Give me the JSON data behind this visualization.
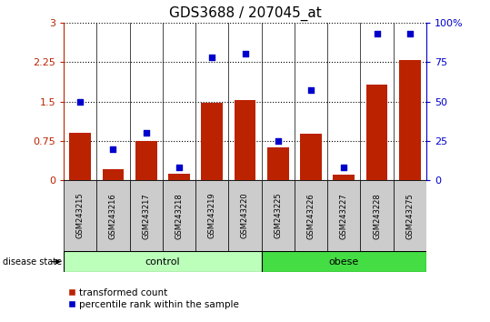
{
  "title": "GDS3688 / 207045_at",
  "samples": [
    "GSM243215",
    "GSM243216",
    "GSM243217",
    "GSM243218",
    "GSM243219",
    "GSM243220",
    "GSM243225",
    "GSM243226",
    "GSM243227",
    "GSM243228",
    "GSM243275"
  ],
  "transformed_count": [
    0.9,
    0.22,
    0.75,
    0.12,
    1.47,
    1.52,
    0.63,
    0.88,
    0.1,
    1.82,
    2.28
  ],
  "percentile_rank": [
    50,
    20,
    30,
    8,
    78,
    80,
    25,
    57,
    8,
    93,
    93
  ],
  "control_count": 6,
  "obese_count": 5,
  "ylim_left": [
    0,
    3
  ],
  "ylim_right": [
    0,
    100
  ],
  "yticks_left": [
    0,
    0.75,
    1.5,
    2.25,
    3
  ],
  "yticks_right": [
    0,
    25,
    50,
    75,
    100
  ],
  "bar_color": "#bb2200",
  "dot_color": "#0000cc",
  "control_color": "#bbffbb",
  "obese_color": "#44dd44",
  "sample_bg_color": "#cccccc",
  "plot_bg_color": "#ffffff",
  "label_bar": "transformed count",
  "label_dot": "percentile rank within the sample",
  "group_control": "control",
  "group_obese": "obese",
  "disease_state_label": "disease state"
}
